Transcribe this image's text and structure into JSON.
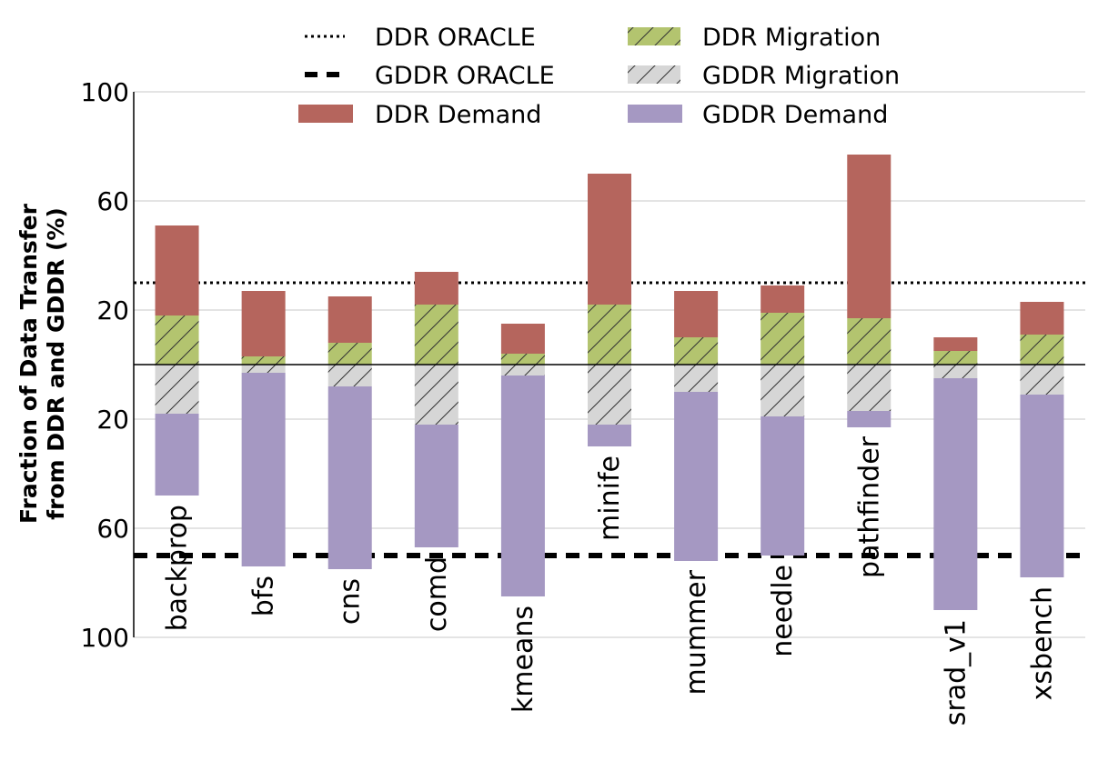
{
  "chart_data": {
    "type": "bar",
    "stacked": "diverging",
    "categories": [
      "backprop",
      "bfs",
      "cns",
      "comd",
      "kmeans",
      "minife",
      "mummer",
      "needle",
      "pathfinder",
      "srad_v1",
      "xsbench"
    ],
    "ylabel_lines": [
      "Fraction of Data Transfer",
      "from DDR and GDDR (%)"
    ],
    "upper_ticks": [
      "100",
      "60",
      "20"
    ],
    "lower_ticks": [
      "20",
      "60",
      "100"
    ],
    "upper_tick_values": [
      100,
      60,
      20
    ],
    "lower_tick_values": [
      20,
      60,
      100
    ],
    "ylim_upper": [
      0,
      100
    ],
    "ylim_lower": [
      0,
      100
    ],
    "grid": true,
    "legend_position": "top",
    "series": [
      {
        "name": "DDR Migration",
        "side": "upper",
        "color": "#b3c46f",
        "hatch": true,
        "values": [
          18,
          3,
          8,
          22,
          4,
          22,
          10,
          19,
          17,
          5,
          11
        ]
      },
      {
        "name": "DDR Demand",
        "side": "upper",
        "color": "#b5655d",
        "hatch": false,
        "values": [
          33,
          24,
          17,
          12,
          11,
          48,
          17,
          10,
          60,
          5,
          12
        ]
      },
      {
        "name": "GDDR Migration",
        "side": "lower",
        "color": "#d6d6d6",
        "hatch": true,
        "values": [
          18,
          3,
          8,
          22,
          4,
          22,
          10,
          19,
          17,
          5,
          11
        ]
      },
      {
        "name": "GDDR Demand",
        "side": "lower",
        "color": "#a598c2",
        "hatch": false,
        "values": [
          30,
          71,
          67,
          45,
          81,
          8,
          62,
          51,
          6,
          85,
          67
        ]
      }
    ],
    "reference_lines": [
      {
        "name": "DDR ORACLE",
        "side": "upper",
        "value": 30,
        "style": "dotted"
      },
      {
        "name": "GDDR ORACLE",
        "side": "lower",
        "value": 70,
        "style": "dashed"
      }
    ],
    "legend": [
      {
        "label": "DDR ORACLE",
        "kind": "dotted-line"
      },
      {
        "label": "DDR Migration",
        "kind": "hatched",
        "color": "#b3c46f"
      },
      {
        "label": "GDDR ORACLE",
        "kind": "dashed-line"
      },
      {
        "label": "GDDR Migration",
        "kind": "hatched",
        "color": "#d6d6d6"
      },
      {
        "label": "DDR Demand",
        "kind": "solid",
        "color": "#b5655d"
      },
      {
        "label": "GDDR Demand",
        "kind": "solid",
        "color": "#a598c2"
      }
    ]
  }
}
